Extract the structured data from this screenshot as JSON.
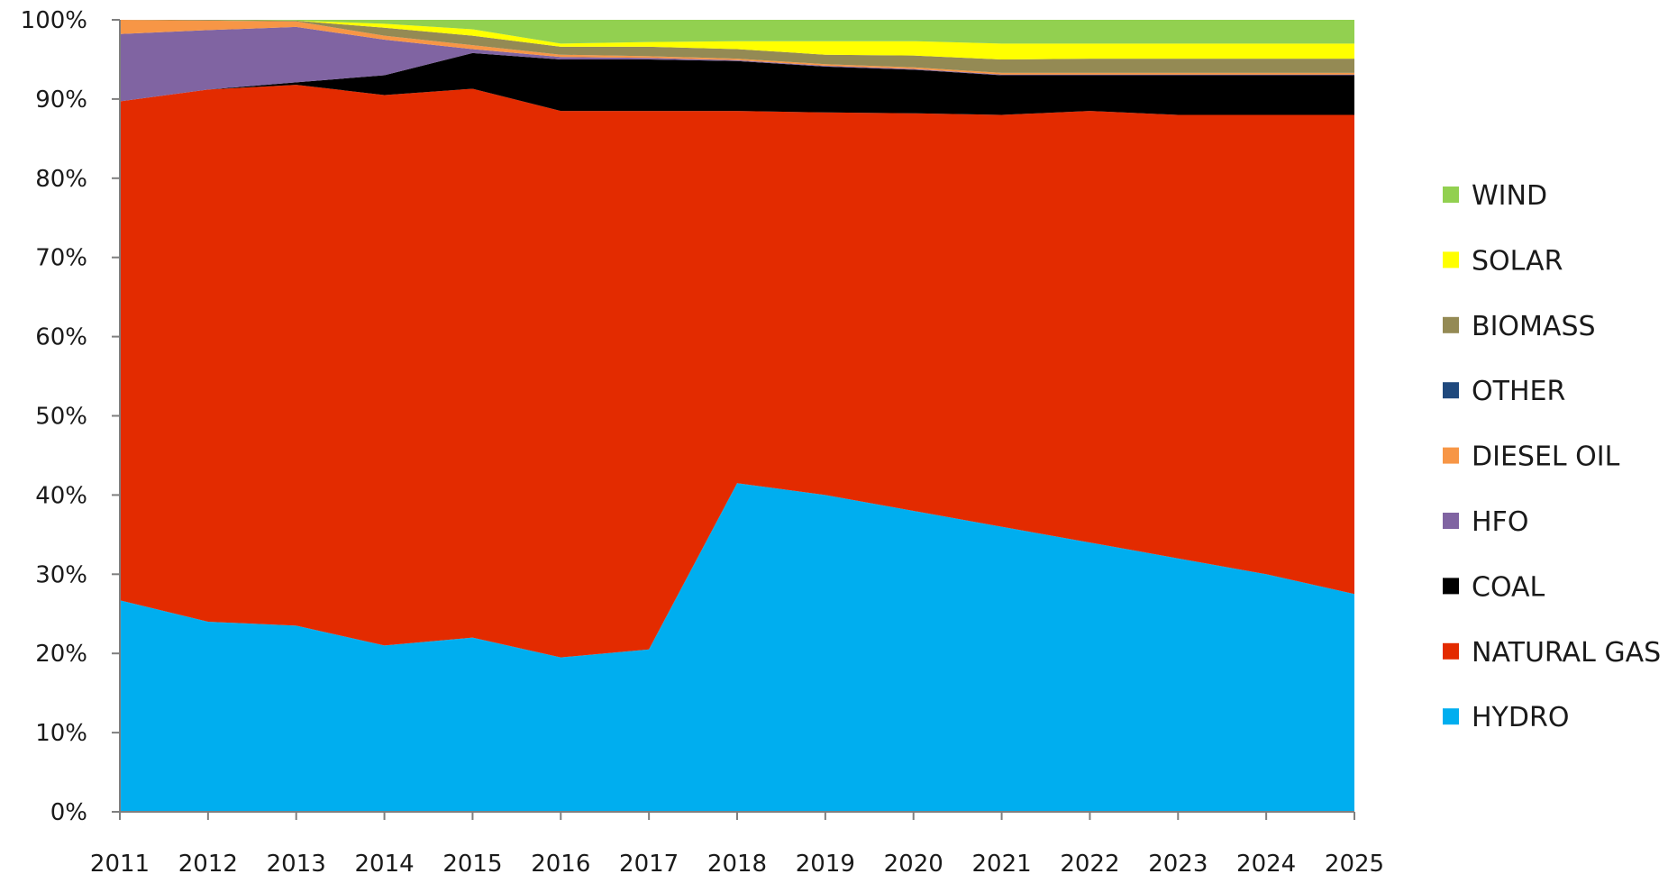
{
  "chart_data": {
    "type": "area",
    "stacked": true,
    "normalized": true,
    "title": "",
    "xlabel": "",
    "ylabel": "",
    "ylim": [
      0,
      100
    ],
    "yticks": [
      "0%",
      "10%",
      "20%",
      "30%",
      "40%",
      "50%",
      "60%",
      "70%",
      "80%",
      "90%",
      "100%"
    ],
    "x": [
      "2011",
      "2012",
      "2013",
      "2014",
      "2015",
      "2016",
      "2017",
      "2018",
      "2019",
      "2020",
      "2021",
      "2022",
      "2023",
      "2024",
      "2025"
    ],
    "grid": false,
    "legend_position": "right",
    "series": [
      {
        "name": "HYDRO",
        "color": "#00aeef",
        "values": [
          26.7,
          24.0,
          23.5,
          21.0,
          22.0,
          19.5,
          20.5,
          41.5,
          40.0,
          38.0,
          36.0,
          34.0,
          32.0,
          30.0,
          27.5
        ]
      },
      {
        "name": "NATURAL GAS",
        "color": "#e32b00",
        "values": [
          63.0,
          67.2,
          68.3,
          69.5,
          69.3,
          69.0,
          68.0,
          47.0,
          48.3,
          50.2,
          52.0,
          54.5,
          56.0,
          58.0,
          60.5
        ]
      },
      {
        "name": "COAL",
        "color": "#000000",
        "values": [
          0.0,
          0.0,
          0.3,
          2.5,
          4.5,
          6.5,
          6.5,
          6.3,
          5.8,
          5.5,
          5.0,
          4.5,
          5.0,
          5.0,
          5.0
        ]
      },
      {
        "name": "HFO",
        "color": "#8064a2",
        "values": [
          8.5,
          7.5,
          7.0,
          4.5,
          0.5,
          0.3,
          0.2,
          0.1,
          0.1,
          0.1,
          0.1,
          0.1,
          0.1,
          0.1,
          0.1
        ]
      },
      {
        "name": "DIESEL OIL",
        "color": "#f79646",
        "values": [
          1.8,
          1.2,
          0.7,
          0.5,
          0.5,
          0.3,
          0.2,
          0.2,
          0.2,
          0.2,
          0.2,
          0.2,
          0.2,
          0.2,
          0.2
        ]
      },
      {
        "name": "OTHER",
        "color": "#1f497d",
        "values": [
          0.0,
          0.0,
          0.0,
          0.0,
          0.0,
          0.0,
          0.0,
          0.0,
          0.0,
          0.0,
          0.0,
          0.0,
          0.0,
          0.0,
          0.0
        ]
      },
      {
        "name": "BIOMASS",
        "color": "#948a54",
        "values": [
          0.0,
          0.1,
          0.1,
          1.0,
          1.2,
          1.0,
          1.2,
          1.2,
          1.2,
          1.5,
          1.7,
          1.8,
          1.8,
          1.8,
          1.8
        ]
      },
      {
        "name": "SOLAR",
        "color": "#ffff00",
        "values": [
          0.0,
          0.0,
          0.0,
          0.5,
          0.8,
          0.4,
          0.6,
          1.0,
          1.7,
          1.8,
          2.0,
          1.9,
          1.9,
          1.9,
          1.9
        ]
      },
      {
        "name": "WIND",
        "color": "#92d050",
        "values": [
          0.0,
          0.0,
          0.1,
          0.5,
          1.2,
          3.0,
          2.8,
          2.7,
          2.7,
          2.7,
          3.0,
          3.0,
          3.0,
          3.0,
          3.0
        ]
      }
    ],
    "legend_order": [
      "WIND",
      "SOLAR",
      "BIOMASS",
      "OTHER",
      "DIESEL OIL",
      "HFO",
      "COAL",
      "NATURAL GAS",
      "HYDRO"
    ]
  }
}
